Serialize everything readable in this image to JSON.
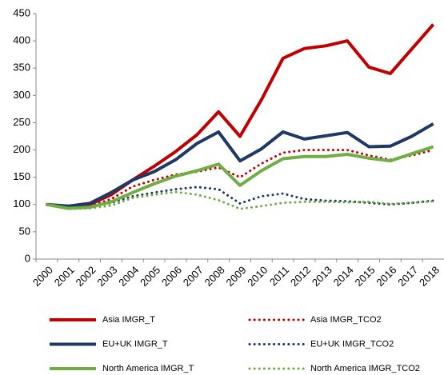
{
  "chart_data": {
    "type": "line",
    "categories": [
      "2000",
      "2001",
      "2002",
      "2003",
      "2004",
      "2005",
      "2006",
      "2007",
      "2008",
      "2009",
      "2010",
      "2011",
      "2012",
      "2013",
      "2014",
      "2015",
      "2016",
      "2017",
      "2018"
    ],
    "series": [
      {
        "name": "Asia IMGR_T",
        "color": "#c00000",
        "style": "solid",
        "values": [
          100,
          96,
          100,
          118,
          145,
          170,
          197,
          228,
          270,
          225,
          292,
          368,
          386,
          391,
          400,
          352,
          340,
          385,
          430
        ]
      },
      {
        "name": "Asia IMGR_TCO2",
        "color": "#c00000",
        "style": "dotted",
        "values": [
          100,
          93,
          97,
          110,
          133,
          145,
          155,
          160,
          168,
          150,
          175,
          195,
          200,
          200,
          200,
          190,
          182,
          190,
          200
        ]
      },
      {
        "name": "EU+UK IMGR_T",
        "color": "#1f3864",
        "style": "solid",
        "values": [
          100,
          97,
          102,
          122,
          145,
          160,
          182,
          212,
          233,
          180,
          202,
          233,
          220,
          226,
          232,
          206,
          207,
          225,
          248
        ]
      },
      {
        "name": "EU+UK IMGR_TCO2",
        "color": "#1f3864",
        "style": "dotted",
        "values": [
          100,
          92,
          95,
          103,
          115,
          122,
          128,
          132,
          128,
          102,
          115,
          120,
          110,
          107,
          106,
          103,
          100,
          103,
          107
        ]
      },
      {
        "name": "North America IMGR_T",
        "color": "#70ad47",
        "style": "solid",
        "values": [
          100,
          93,
          95,
          105,
          122,
          138,
          152,
          162,
          174,
          135,
          162,
          184,
          188,
          188,
          192,
          185,
          180,
          193,
          206
        ]
      },
      {
        "name": "North America IMGR_TCO2",
        "color": "#70ad47",
        "style": "dotted",
        "values": [
          100,
          92,
          93,
          98,
          112,
          118,
          123,
          118,
          108,
          92,
          97,
          103,
          105,
          105,
          104,
          105,
          101,
          103,
          106
        ]
      }
    ],
    "ylim": [
      0,
      450
    ],
    "yticks": [
      0,
      50,
      100,
      150,
      200,
      250,
      300,
      350,
      400,
      450
    ],
    "grid": false,
    "legend": "bottom"
  }
}
